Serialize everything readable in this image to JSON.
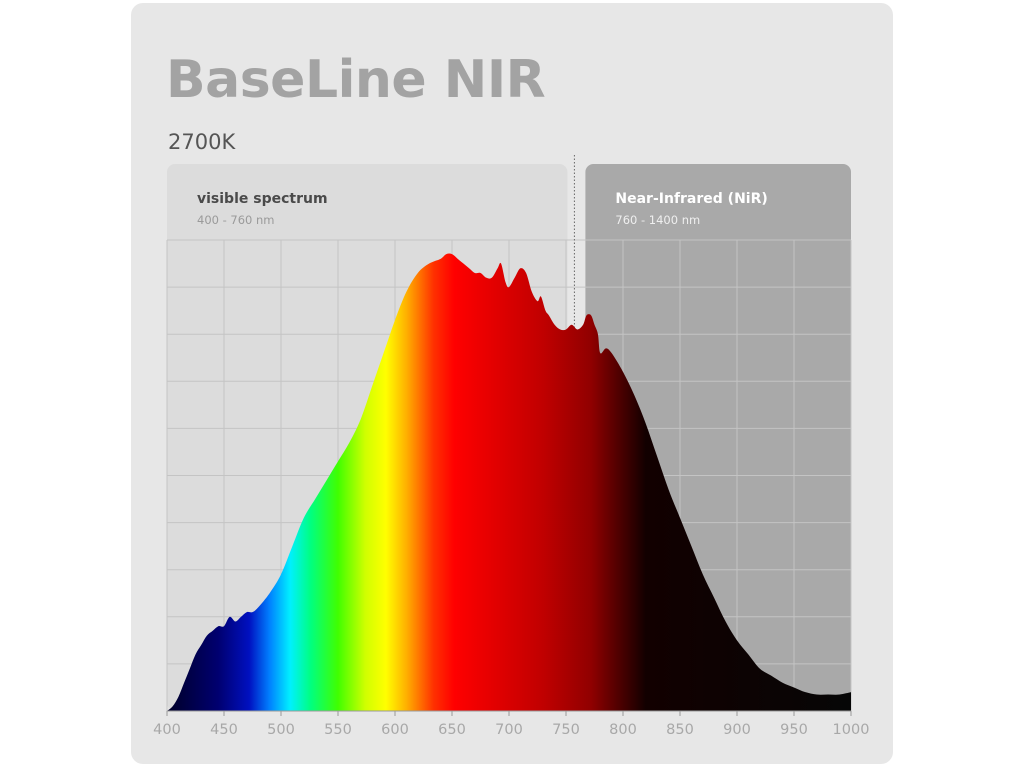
{
  "title": "BaseLine NIR",
  "subtitle": "2700K",
  "chart_data": {
    "type": "area",
    "xlabel": "",
    "ylabel": "",
    "xlim": [
      400,
      1000
    ],
    "ylim": [
      0,
      1.0
    ],
    "grid": true,
    "fill": "wavelength-color-gradient",
    "x_ticks": [
      400,
      450,
      500,
      550,
      600,
      650,
      700,
      750,
      800,
      850,
      900,
      950,
      1000
    ],
    "regions": [
      {
        "name": "visible spectrum",
        "range_label": "400 - 760 nm",
        "from": 400,
        "to": 760,
        "color": "#dcdcdc",
        "text_color": "#4a4a4a",
        "range_color": "#9a9a9a"
      },
      {
        "name": "Near-Infrared (NiR)",
        "range_label": "760 - 1400 nm",
        "from": 760,
        "to": 1000,
        "color": "#a9a9a9",
        "text_color": "#ffffff",
        "range_color": "#efefef"
      }
    ],
    "divider_x": 760,
    "x": [
      400,
      405,
      410,
      415,
      420,
      425,
      430,
      435,
      440,
      445,
      450,
      455,
      460,
      465,
      470,
      475,
      480,
      490,
      500,
      510,
      520,
      530,
      540,
      550,
      560,
      570,
      580,
      590,
      600,
      610,
      620,
      630,
      640,
      645,
      650,
      655,
      660,
      665,
      670,
      675,
      680,
      685,
      690,
      693,
      697,
      700,
      705,
      710,
      715,
      720,
      725,
      728,
      732,
      735,
      740,
      745,
      750,
      755,
      760,
      765,
      768,
      772,
      775,
      778,
      780,
      785,
      790,
      800,
      810,
      820,
      830,
      840,
      850,
      860,
      870,
      880,
      890,
      900,
      910,
      920,
      930,
      940,
      950,
      960,
      970,
      980,
      990,
      1000
    ],
    "y": [
      0.0,
      0.01,
      0.03,
      0.06,
      0.09,
      0.12,
      0.14,
      0.16,
      0.17,
      0.18,
      0.18,
      0.2,
      0.19,
      0.2,
      0.21,
      0.21,
      0.22,
      0.25,
      0.29,
      0.35,
      0.41,
      0.45,
      0.49,
      0.53,
      0.57,
      0.62,
      0.69,
      0.76,
      0.83,
      0.89,
      0.93,
      0.95,
      0.96,
      0.97,
      0.97,
      0.96,
      0.95,
      0.94,
      0.93,
      0.93,
      0.92,
      0.92,
      0.94,
      0.95,
      0.91,
      0.9,
      0.92,
      0.94,
      0.93,
      0.89,
      0.87,
      0.88,
      0.85,
      0.84,
      0.82,
      0.81,
      0.81,
      0.82,
      0.81,
      0.82,
      0.84,
      0.84,
      0.82,
      0.8,
      0.76,
      0.77,
      0.76,
      0.72,
      0.67,
      0.61,
      0.54,
      0.47,
      0.41,
      0.35,
      0.29,
      0.24,
      0.19,
      0.15,
      0.12,
      0.09,
      0.075,
      0.06,
      0.05,
      0.04,
      0.035,
      0.035,
      0.035,
      0.04
    ]
  }
}
